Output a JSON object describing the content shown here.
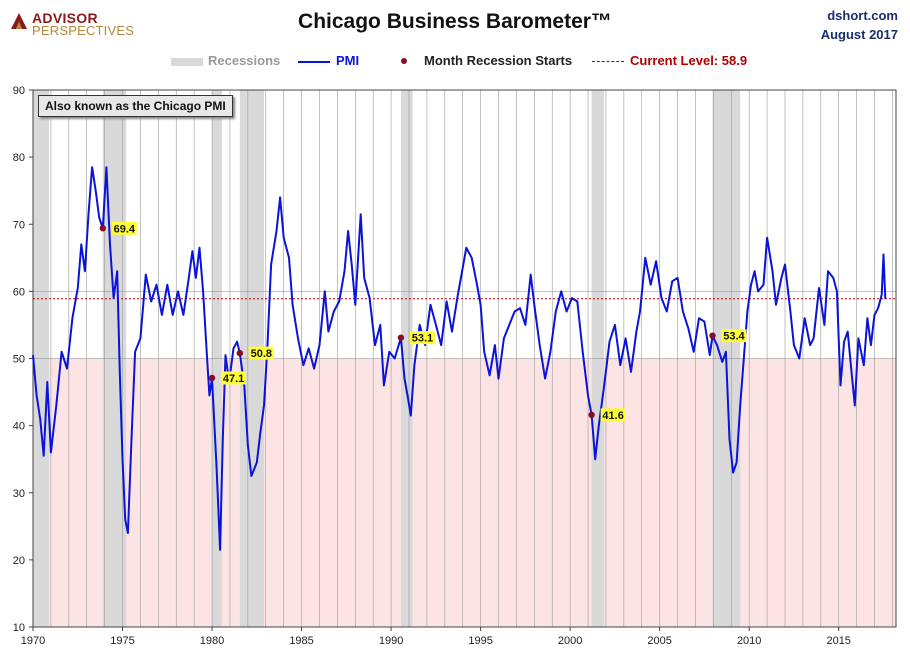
{
  "logo": {
    "line1": "ADVISOR",
    "line2": "PERSPECTIVES",
    "icon": "advisor-perspectives-logo-mark"
  },
  "header": {
    "title": "Chicago Business Barometer™",
    "source": "dshort.com",
    "date": "August 2017"
  },
  "legend": {
    "recessions": "Recessions",
    "pmi": "PMI",
    "month_recession_starts": "Month Recession Starts",
    "current_level": "Current Level: 58.9"
  },
  "callout": "Also known as the Chicago PMI",
  "colors": {
    "pmi": "#0a14d8",
    "recession": "#d9d9d9",
    "marker": "#8b0a2a",
    "current": "#b00000",
    "label_bg": "#ffff33",
    "contraction": "#fde4e4"
  },
  "chart_data": {
    "type": "line",
    "xlim": [
      1970,
      2018.2
    ],
    "ylim": [
      10,
      90
    ],
    "x_ticks": [
      1970,
      1975,
      1980,
      1985,
      1990,
      1995,
      2000,
      2005,
      2010,
      2015
    ],
    "x_tick_labels": [
      "1970",
      "1975",
      "1980",
      "1985",
      "1990",
      "1995",
      "2000",
      "2005",
      "2010",
      "2015"
    ],
    "y_ticks": [
      10,
      20,
      30,
      40,
      50,
      60,
      70,
      80,
      90
    ],
    "y_tick_labels": [
      "10",
      "20",
      "30",
      "40",
      "50",
      "60",
      "70",
      "80",
      "90"
    ],
    "grid": "vertical-yearly",
    "shaded_below": 50,
    "current_level": 58.9,
    "recessions": [
      [
        1970.0,
        1970.9
      ],
      [
        1973.9,
        1975.2
      ],
      [
        1980.0,
        1980.55
      ],
      [
        1981.55,
        1982.9
      ],
      [
        1990.55,
        1991.2
      ],
      [
        2001.2,
        2001.9
      ],
      [
        2007.95,
        2009.5
      ]
    ],
    "recession_starts": [
      {
        "x": 1973.9,
        "y": 69.4,
        "label": "69.4"
      },
      {
        "x": 1980.0,
        "y": 47.1,
        "label": "47.1"
      },
      {
        "x": 1981.55,
        "y": 50.8,
        "label": "50.8"
      },
      {
        "x": 1990.55,
        "y": 53.1,
        "label": "53.1"
      },
      {
        "x": 2001.2,
        "y": 41.6,
        "label": "41.6"
      },
      {
        "x": 2007.95,
        "y": 53.4,
        "label": "53.4"
      }
    ],
    "series": [
      {
        "name": "PMI",
        "points": [
          [
            1970.0,
            50.5
          ],
          [
            1970.2,
            44.5
          ],
          [
            1970.4,
            41.0
          ],
          [
            1970.6,
            35.5
          ],
          [
            1970.8,
            46.5
          ],
          [
            1971.0,
            36.0
          ],
          [
            1971.3,
            43.0
          ],
          [
            1971.6,
            51.0
          ],
          [
            1971.9,
            48.5
          ],
          [
            1972.2,
            56.0
          ],
          [
            1972.5,
            60.5
          ],
          [
            1972.7,
            67.0
          ],
          [
            1972.9,
            63.0
          ],
          [
            1973.1,
            71.5
          ],
          [
            1973.3,
            78.5
          ],
          [
            1973.5,
            75.0
          ],
          [
            1973.7,
            71.0
          ],
          [
            1973.9,
            69.4
          ],
          [
            1974.1,
            78.5
          ],
          [
            1974.3,
            67.0
          ],
          [
            1974.5,
            59.0
          ],
          [
            1974.7,
            63.0
          ],
          [
            1974.85,
            48.0
          ],
          [
            1975.0,
            35.0
          ],
          [
            1975.15,
            26.0
          ],
          [
            1975.3,
            24.0
          ],
          [
            1975.5,
            38.0
          ],
          [
            1975.7,
            51.0
          ],
          [
            1976.0,
            53.0
          ],
          [
            1976.3,
            62.5
          ],
          [
            1976.6,
            58.5
          ],
          [
            1976.9,
            61.0
          ],
          [
            1977.2,
            56.5
          ],
          [
            1977.5,
            61.0
          ],
          [
            1977.8,
            56.5
          ],
          [
            1978.1,
            60.0
          ],
          [
            1978.4,
            56.5
          ],
          [
            1978.7,
            62.0
          ],
          [
            1978.9,
            66.0
          ],
          [
            1979.1,
            62.0
          ],
          [
            1979.3,
            66.5
          ],
          [
            1979.5,
            60.0
          ],
          [
            1979.7,
            51.0
          ],
          [
            1979.85,
            44.5
          ],
          [
            1980.0,
            47.1
          ],
          [
            1980.25,
            34.0
          ],
          [
            1980.45,
            21.5
          ],
          [
            1980.6,
            38.0
          ],
          [
            1980.75,
            50.5
          ],
          [
            1980.95,
            46.5
          ],
          [
            1981.2,
            51.5
          ],
          [
            1981.4,
            52.5
          ],
          [
            1981.55,
            50.8
          ],
          [
            1981.8,
            46.0
          ],
          [
            1982.0,
            37.0
          ],
          [
            1982.2,
            32.5
          ],
          [
            1982.5,
            34.5
          ],
          [
            1982.7,
            39.0
          ],
          [
            1982.9,
            43.0
          ],
          [
            1983.1,
            52.0
          ],
          [
            1983.3,
            64.0
          ],
          [
            1983.6,
            69.0
          ],
          [
            1983.8,
            74.0
          ],
          [
            1984.0,
            68.0
          ],
          [
            1984.3,
            65.0
          ],
          [
            1984.5,
            58.0
          ],
          [
            1984.8,
            53.0
          ],
          [
            1985.1,
            49.0
          ],
          [
            1985.4,
            51.5
          ],
          [
            1985.7,
            48.5
          ],
          [
            1986.0,
            52.0
          ],
          [
            1986.3,
            60.0
          ],
          [
            1986.5,
            54.0
          ],
          [
            1986.8,
            57.0
          ],
          [
            1987.1,
            58.5
          ],
          [
            1987.4,
            63.0
          ],
          [
            1987.6,
            69.0
          ],
          [
            1987.8,
            64.0
          ],
          [
            1988.0,
            58.0
          ],
          [
            1988.3,
            71.5
          ],
          [
            1988.5,
            62.0
          ],
          [
            1988.8,
            59.0
          ],
          [
            1989.1,
            52.0
          ],
          [
            1989.4,
            55.0
          ],
          [
            1989.6,
            46.0
          ],
          [
            1989.9,
            51.0
          ],
          [
            1990.2,
            50.0
          ],
          [
            1990.55,
            53.1
          ],
          [
            1990.75,
            47.0
          ],
          [
            1990.95,
            44.0
          ],
          [
            1991.1,
            41.5
          ],
          [
            1991.3,
            49.0
          ],
          [
            1991.6,
            55.0
          ],
          [
            1991.9,
            52.0
          ],
          [
            1992.2,
            58.0
          ],
          [
            1992.5,
            55.0
          ],
          [
            1992.8,
            52.0
          ],
          [
            1993.1,
            58.5
          ],
          [
            1993.4,
            54.0
          ],
          [
            1993.7,
            59.0
          ],
          [
            1993.9,
            62.0
          ],
          [
            1994.2,
            66.5
          ],
          [
            1994.5,
            65.0
          ],
          [
            1994.8,
            61.0
          ],
          [
            1995.0,
            58.0
          ],
          [
            1995.2,
            51.0
          ],
          [
            1995.5,
            47.5
          ],
          [
            1995.8,
            52.0
          ],
          [
            1996.0,
            47.0
          ],
          [
            1996.3,
            53.0
          ],
          [
            1996.6,
            55.0
          ],
          [
            1996.9,
            57.0
          ],
          [
            1997.2,
            57.5
          ],
          [
            1997.5,
            55.0
          ],
          [
            1997.8,
            62.5
          ],
          [
            1998.0,
            58.0
          ],
          [
            1998.3,
            52.0
          ],
          [
            1998.6,
            47.0
          ],
          [
            1998.9,
            51.0
          ],
          [
            1999.2,
            57.0
          ],
          [
            1999.5,
            60.0
          ],
          [
            1999.8,
            57.0
          ],
          [
            2000.1,
            59.0
          ],
          [
            2000.4,
            58.5
          ],
          [
            2000.7,
            51.0
          ],
          [
            2001.0,
            44.5
          ],
          [
            2001.2,
            41.6
          ],
          [
            2001.4,
            35.0
          ],
          [
            2001.6,
            40.0
          ],
          [
            2001.9,
            46.0
          ],
          [
            2002.2,
            52.5
          ],
          [
            2002.5,
            55.0
          ],
          [
            2002.8,
            49.0
          ],
          [
            2003.1,
            53.0
          ],
          [
            2003.4,
            48.0
          ],
          [
            2003.7,
            54.0
          ],
          [
            2003.9,
            57.0
          ],
          [
            2004.2,
            65.0
          ],
          [
            2004.5,
            61.0
          ],
          [
            2004.8,
            64.5
          ],
          [
            2005.1,
            59.0
          ],
          [
            2005.4,
            57.0
          ],
          [
            2005.7,
            61.5
          ],
          [
            2006.0,
            62.0
          ],
          [
            2006.3,
            57.0
          ],
          [
            2006.6,
            54.5
          ],
          [
            2006.9,
            51.0
          ],
          [
            2007.2,
            56.0
          ],
          [
            2007.5,
            55.5
          ],
          [
            2007.8,
            50.5
          ],
          [
            2007.95,
            53.4
          ],
          [
            2008.2,
            52.0
          ],
          [
            2008.5,
            49.5
          ],
          [
            2008.7,
            51.0
          ],
          [
            2008.9,
            38.0
          ],
          [
            2009.1,
            33.0
          ],
          [
            2009.3,
            34.5
          ],
          [
            2009.5,
            43.0
          ],
          [
            2009.7,
            50.0
          ],
          [
            2009.9,
            57.0
          ],
          [
            2010.1,
            61.0
          ],
          [
            2010.3,
            63.0
          ],
          [
            2010.5,
            60.0
          ],
          [
            2010.8,
            61.0
          ],
          [
            2011.0,
            68.0
          ],
          [
            2011.3,
            63.0
          ],
          [
            2011.5,
            58.0
          ],
          [
            2011.8,
            62.0
          ],
          [
            2012.0,
            64.0
          ],
          [
            2012.3,
            57.0
          ],
          [
            2012.5,
            52.0
          ],
          [
            2012.8,
            50.0
          ],
          [
            2013.1,
            56.0
          ],
          [
            2013.4,
            52.0
          ],
          [
            2013.6,
            53.0
          ],
          [
            2013.9,
            60.5
          ],
          [
            2014.2,
            55.0
          ],
          [
            2014.4,
            63.0
          ],
          [
            2014.7,
            62.0
          ],
          [
            2014.9,
            60.0
          ],
          [
            2015.1,
            46.0
          ],
          [
            2015.3,
            52.5
          ],
          [
            2015.5,
            54.0
          ],
          [
            2015.7,
            48.5
          ],
          [
            2015.9,
            43.0
          ],
          [
            2016.1,
            53.0
          ],
          [
            2016.4,
            49.0
          ],
          [
            2016.6,
            56.0
          ],
          [
            2016.8,
            52.0
          ],
          [
            2017.0,
            56.5
          ],
          [
            2017.2,
            57.5
          ],
          [
            2017.4,
            59.5
          ],
          [
            2017.5,
            65.5
          ],
          [
            2017.6,
            58.9
          ]
        ]
      }
    ]
  }
}
